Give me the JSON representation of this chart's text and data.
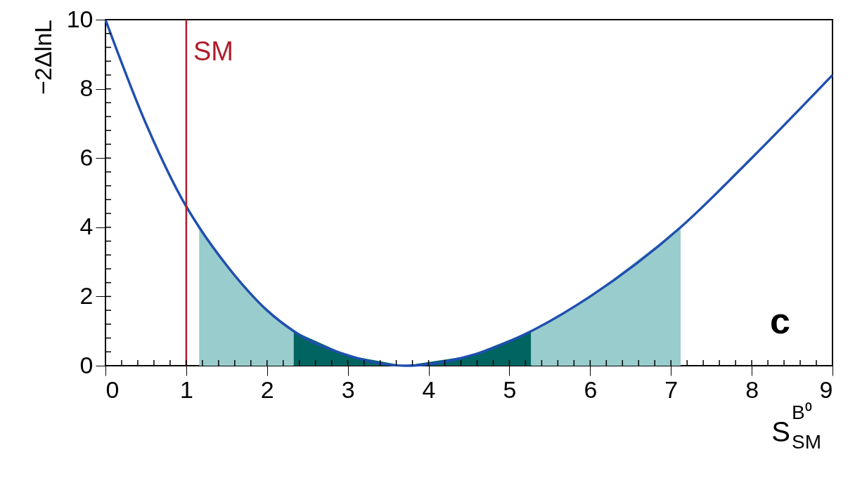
{
  "chart_data": {
    "type": "line",
    "xlabel": "S$^{B⁰}$$_{SM}$",
    "ylabel": "−2ΔlnL",
    "xlim": [
      0,
      9
    ],
    "ylim": [
      0,
      10
    ],
    "xticks": [
      0,
      1,
      2,
      3,
      4,
      5,
      6,
      7,
      8,
      9
    ],
    "yticks": [
      0,
      2,
      4,
      6,
      8,
      10
    ],
    "grid": false,
    "marker": "none",
    "line_style": "solid",
    "series": [
      {
        "type": "area",
        "color": "#99cccc",
        "x": [
          1.16,
          1.5,
          2,
          2.33
        ],
        "values": [
          4.0,
          2.9,
          1.6,
          1.0
        ]
      },
      {
        "type": "area",
        "color": "#006461",
        "x": [
          2.33,
          3,
          3.7,
          4.5,
          5.27
        ],
        "values": [
          1.0,
          0.3,
          0,
          0.28,
          1.0
        ]
      },
      {
        "type": "area",
        "color": "#99cccc",
        "x": [
          5.27,
          6,
          7.12
        ],
        "values": [
          1.0,
          2.0,
          4.0
        ]
      },
      {
        "color": "#1f4fb0",
        "x": [
          0,
          0.5,
          1,
          1.16,
          1.5,
          2,
          2.33,
          3,
          3.7,
          4.5,
          5.27,
          6,
          7.12,
          8,
          9
        ],
        "values": [
          10,
          7.0,
          4.6,
          4.0,
          2.9,
          1.6,
          1.0,
          0.3,
          0,
          0.28,
          1.0,
          2.0,
          4.0,
          6.0,
          8.4
        ]
      }
    ],
    "ref_lines": [
      {
        "axis": "x",
        "value": 1,
        "label": "SM",
        "color": "#b01c2a"
      }
    ],
    "annotations": [
      {
        "text": "c"
      }
    ]
  }
}
